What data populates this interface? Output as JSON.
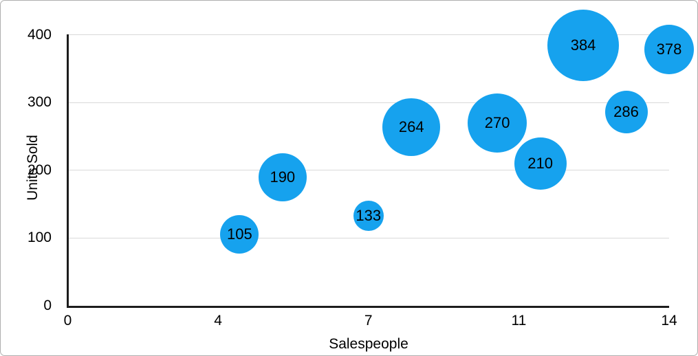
{
  "frame": {
    "background": "#ffffff",
    "border_color": "#aeaeae"
  },
  "chart_data": {
    "type": "scatter",
    "subtype": "bubble",
    "title": "",
    "xlabel": "Salespeople",
    "ylabel": "Units Sold",
    "xlim": [
      0,
      14
    ],
    "ylim": [
      0,
      400
    ],
    "grid": "horizontal-only",
    "legend": "none",
    "bubble_color": "#16a2ee",
    "axis_color": "#1c1c1c",
    "gridline_color": "#d9d9d9",
    "text_color": "#000000",
    "x_ticks": [
      {
        "pos": 0,
        "label": "0"
      },
      {
        "pos": 3.5,
        "label": "4"
      },
      {
        "pos": 7,
        "label": "7"
      },
      {
        "pos": 10.5,
        "label": "11"
      },
      {
        "pos": 14,
        "label": "14"
      }
    ],
    "y_ticks": [
      {
        "pos": 0,
        "label": "0"
      },
      {
        "pos": 100,
        "label": "100"
      },
      {
        "pos": 200,
        "label": "200"
      },
      {
        "pos": 300,
        "label": "300"
      },
      {
        "pos": 400,
        "label": "400"
      }
    ],
    "points": [
      {
        "x": 4,
        "y": 105,
        "label": "105",
        "radius_px": 28
      },
      {
        "x": 5,
        "y": 190,
        "label": "190",
        "radius_px": 35
      },
      {
        "x": 7,
        "y": 133,
        "label": "133",
        "radius_px": 22
      },
      {
        "x": 8,
        "y": 264,
        "label": "264",
        "radius_px": 42
      },
      {
        "x": 10,
        "y": 270,
        "label": "270",
        "radius_px": 43
      },
      {
        "x": 11,
        "y": 210,
        "label": "210",
        "radius_px": 38
      },
      {
        "x": 12,
        "y": 384,
        "label": "384",
        "radius_px": 52
      },
      {
        "x": 13,
        "y": 286,
        "label": "286",
        "radius_px": 31
      },
      {
        "x": 14,
        "y": 378,
        "label": "378",
        "radius_px": 36
      }
    ]
  }
}
